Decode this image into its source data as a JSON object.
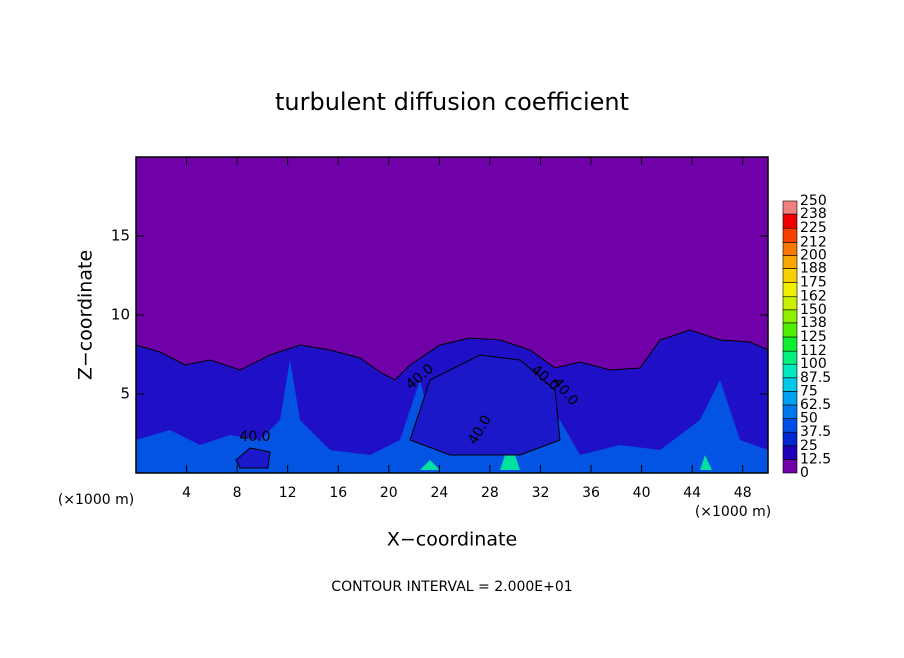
{
  "chart_data": {
    "type": "contour",
    "title": "turbulent diffusion coefficient",
    "xlabel": "X−coordinate",
    "ylabel": "Z−coordinate",
    "x_unit": "(×1000 m)",
    "x_unit_right": "(×1000 m)",
    "footer": "CONTOUR INTERVAL = 2.000E+01",
    "xlim": [
      0,
      50
    ],
    "xticks": [
      4,
      8,
      12,
      16,
      20,
      24,
      28,
      32,
      36,
      40,
      44,
      48
    ],
    "ylim": [
      0,
      20
    ],
    "yticks": [
      5,
      10,
      15
    ],
    "levels": [
      0,
      12.5,
      25,
      37.5,
      50,
      62.5,
      75,
      87.5,
      100,
      112,
      125,
      138,
      150,
      162,
      175,
      188,
      200,
      212,
      225,
      238,
      250
    ],
    "colors": [
      "#7000a8",
      "#2000b8",
      "#0028d0",
      "#0050e8",
      "#0078f0",
      "#00a0f0",
      "#00c8e8",
      "#00e8c0",
      "#00f080",
      "#10f030",
      "#50f000",
      "#90f000",
      "#c8f000",
      "#f0f000",
      "#f8d000",
      "#f8a800",
      "#f87800",
      "#f84000",
      "#f00000",
      "#f08080"
    ],
    "contour_labels": [
      {
        "value": 40,
        "label": "40.0"
      },
      {
        "value": 40,
        "label": "40.0"
      },
      {
        "value": 40,
        "label": "40.0"
      },
      {
        "value": 40,
        "label": "40.0"
      },
      {
        "value": 40,
        "label": "40.0"
      }
    ]
  }
}
